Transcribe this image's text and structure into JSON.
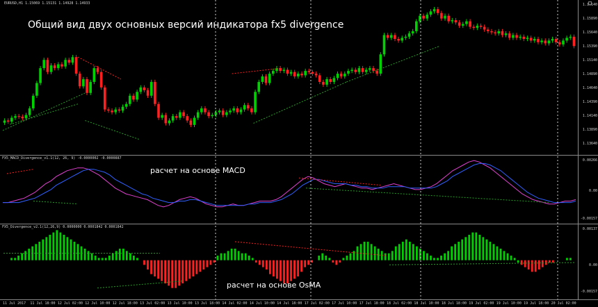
{
  "window": {
    "title": "EURUSD,H1",
    "ohlc": "1.15069 1.15131 1.14928 1.14933"
  },
  "headline": "Общий вид двух основных версий индикатора fx5 divergence",
  "macd_pane": {
    "label": "FX5_MACD_Divergence_v1.1(12, 26, 9) -0.0000002 -0.0000887",
    "caption": "расчет на основе  MACD"
  },
  "osma_pane": {
    "label": "FX5_Divergence_v2.1(12,26,9) 0.0000000 0.0001842 0.0001842",
    "caption": "расчет на основе OsMA"
  },
  "price_ticks": [
    "1.16140",
    "1.15890",
    "1.15640",
    "1.15390",
    "1.15140",
    "1.14890",
    "1.14640",
    "1.14390",
    "1.14140",
    "1.13890",
    "1.13640"
  ],
  "macd_ticks": [
    "0.00266",
    "0.00",
    "-0.00157"
  ],
  "osma_ticks": [
    "0.00137",
    "0.00",
    "-0.00157"
  ],
  "time_labels": [
    "11 Jul 2017",
    "11 Jul 18:00",
    "12 Jul 02:00",
    "12 Jul 10:00",
    "12 Jul 18:00",
    "13 Jul 02:00",
    "13 Jul 10:00",
    "13 Jul 18:00",
    "14 Jul 02:00",
    "14 Jul 10:00",
    "14 Jul 18:00",
    "17 Jul 02:00",
    "17 Jul 10:00",
    "17 Jul 18:00",
    "18 Jul 02:00",
    "18 Jul 10:00",
    "18 Jul 18:00",
    "19 Jul 02:00",
    "19 Jul 10:00",
    "19 Jul 18:00",
    "20 Jul 02:00"
  ],
  "colors": {
    "background": "#000000",
    "bull": "#00d200",
    "bear": "#ff2020",
    "main_line": "#e040d0",
    "signal_line": "#2f5fff",
    "grid": "#d0d0d0",
    "div_up": "#28a028",
    "div_dn": "#ff2020"
  },
  "chart_data": [
    {
      "type": "candlestick",
      "name": "EURUSD,H1",
      "ylim": [
        1.1359,
        1.1616
      ],
      "close": [
        1.141,
        1.1408,
        1.1415,
        1.1418,
        1.1417,
        1.1414,
        1.142,
        1.1432,
        1.1455,
        1.1478,
        1.1505,
        1.152,
        1.1498,
        1.151,
        1.1505,
        1.1512,
        1.1508,
        1.152,
        1.1515,
        1.1525,
        1.1495,
        1.1472,
        1.1485,
        1.146,
        1.148,
        1.1505,
        1.1498,
        1.147,
        1.143,
        1.1428,
        1.1425,
        1.143,
        1.1428,
        1.1435,
        1.144,
        1.1455,
        1.1448,
        1.1462,
        1.147,
        1.1465,
        1.1455,
        1.148,
        1.144,
        1.1415,
        1.142,
        1.1405,
        1.141,
        1.1418,
        1.1415,
        1.1425,
        1.1418,
        1.141,
        1.1402,
        1.1415,
        1.1425,
        1.1432,
        1.1425,
        1.1418,
        1.142,
        1.1425,
        1.1428,
        1.142,
        1.1425,
        1.1428,
        1.1432,
        1.1425,
        1.143,
        1.1438,
        1.1432,
        1.1425,
        1.1462,
        1.148,
        1.149,
        1.1478,
        1.1495,
        1.15,
        1.1505,
        1.15,
        1.1502,
        1.1495,
        1.1498,
        1.149,
        1.1495,
        1.1492,
        1.15,
        1.1498,
        1.1495,
        1.1492,
        1.148,
        1.1475,
        1.1485,
        1.148,
        1.1487,
        1.1495,
        1.149,
        1.1495,
        1.15,
        1.1502,
        1.1498,
        1.1505,
        1.1498,
        1.1502,
        1.1505,
        1.15,
        1.1495,
        1.153,
        1.1565,
        1.156,
        1.1565,
        1.1558,
        1.1555,
        1.156,
        1.1562,
        1.1568,
        1.1572,
        1.159,
        1.16,
        1.1595,
        1.1602,
        1.1608,
        1.1612,
        1.1605,
        1.1595,
        1.16,
        1.159,
        1.1592,
        1.1588,
        1.1582,
        1.1585,
        1.159,
        1.158,
        1.1578,
        1.1582,
        1.158,
        1.1575,
        1.1572,
        1.157,
        1.1568,
        1.1572,
        1.1565,
        1.1568,
        1.156,
        1.1565,
        1.156,
        1.1562,
        1.1558,
        1.156,
        1.1555,
        1.1558,
        1.1552,
        1.1555,
        1.155,
        1.1555,
        1.1558,
        1.1552,
        1.1548,
        1.1555,
        1.156,
        1.1562,
        1.1545
      ],
      "divergence_lines": [
        {
          "color": "div_dn",
          "x": [
            21,
            33
          ],
          "y": [
            1.1525,
            1.1485
          ]
        },
        {
          "color": "div_up",
          "x": [
            0,
            23
          ],
          "y": [
            1.1392,
            1.146
          ]
        },
        {
          "color": "div_up",
          "x": [
            23,
            38
          ],
          "y": [
            1.141,
            1.1376
          ]
        },
        {
          "color": "div_up",
          "x": [
            2,
            21
          ],
          "y": [
            1.1403,
            1.144
          ]
        },
        {
          "color": "div_dn",
          "x": [
            64,
            78
          ],
          "y": [
            1.1495,
            1.1505
          ]
        },
        {
          "color": "div_up",
          "x": [
            70,
            96
          ],
          "y": [
            1.1405,
            1.148
          ]
        },
        {
          "color": "div_up",
          "x": [
            96,
            122
          ],
          "y": [
            1.148,
            1.1545
          ]
        }
      ]
    },
    {
      "type": "line",
      "name": "FX5_MACD_Divergence_v1.1",
      "ylim": [
        -0.00157,
        0.00266
      ],
      "series": [
        {
          "color": "main_line",
          "values": [
            -0.0003,
            -0.0003,
            -0.0002,
            -0.0001,
            0.0,
            0.0002,
            0.0004,
            0.0007,
            0.001,
            0.0012,
            0.0015,
            0.0017,
            0.0019,
            0.002,
            0.0021,
            0.0021,
            0.002,
            0.0018,
            0.0016,
            0.0013,
            0.001,
            0.0007,
            0.0005,
            0.0003,
            0.0002,
            0.0001,
            0.0,
            -0.0001,
            -0.0003,
            -0.0005,
            -0.0006,
            -0.0005,
            -0.0003,
            -0.0001,
            0.0,
            0.0001,
            0.0,
            -0.0002,
            -0.0004,
            -0.0005,
            -0.0006,
            -0.0006,
            -0.0005,
            -0.0004,
            -0.0005,
            -0.0005,
            -0.0004,
            -0.0003,
            -0.0002,
            -0.0002,
            -0.0002,
            -0.0001,
            0.0001,
            0.0004,
            0.0007,
            0.001,
            0.0013,
            0.0015,
            0.0014,
            0.0012,
            0.001,
            0.0009,
            0.0008,
            0.0009,
            0.001,
            0.0009,
            0.0008,
            0.0007,
            0.0007,
            0.0006,
            0.0007,
            0.0008,
            0.0009,
            0.001,
            0.0009,
            0.0008,
            0.0007,
            0.0006,
            0.0006,
            0.0007,
            0.0008,
            0.001,
            0.0013,
            0.0016,
            0.0019,
            0.0021,
            0.0023,
            0.0025,
            0.0026,
            0.0025,
            0.0023,
            0.0021,
            0.0018,
            0.0015,
            0.0012,
            0.0009,
            0.0006,
            0.0003,
            0.0001,
            -0.0001,
            -0.0002,
            -0.0003,
            -0.0004,
            -0.0004,
            -0.0003,
            -0.0002,
            -0.0002,
            -0.0001
          ]
        },
        {
          "color": "signal_line",
          "values": [
            -0.0003,
            -0.0003,
            -0.0003,
            -0.0003,
            -0.0002,
            -0.0001,
            0.0,
            0.0002,
            0.0004,
            0.0006,
            0.0009,
            0.0011,
            0.0013,
            0.0015,
            0.0017,
            0.0019,
            0.002,
            0.002,
            0.0019,
            0.0018,
            0.0016,
            0.0013,
            0.0011,
            0.0009,
            0.0007,
            0.0005,
            0.0003,
            0.0002,
            0.0,
            -0.0001,
            -0.0002,
            -0.0003,
            -0.0003,
            -0.0002,
            -0.0002,
            -0.0001,
            -0.0001,
            -0.0002,
            -0.0003,
            -0.0004,
            -0.0005,
            -0.0005,
            -0.0005,
            -0.0005,
            -0.0005,
            -0.0005,
            -0.0004,
            -0.0004,
            -0.0003,
            -0.0003,
            -0.0003,
            -0.0002,
            -0.0001,
            0.0001,
            0.0003,
            0.0006,
            0.0009,
            0.0011,
            0.0013,
            0.0013,
            0.0012,
            0.0011,
            0.001,
            0.001,
            0.001,
            0.0009,
            0.0009,
            0.0008,
            0.0008,
            0.0007,
            0.0007,
            0.0007,
            0.0008,
            0.0008,
            0.0008,
            0.0008,
            0.0007,
            0.0007,
            0.0007,
            0.0007,
            0.0007,
            0.0008,
            0.001,
            0.0012,
            0.0015,
            0.0017,
            0.0019,
            0.0021,
            0.0023,
            0.0024,
            0.0024,
            0.0023,
            0.0021,
            0.0019,
            0.0016,
            0.0013,
            0.001,
            0.0007,
            0.0004,
            0.0002,
            0.0,
            -0.0001,
            -0.0002,
            -0.0003,
            -0.0003,
            -0.0003,
            -0.0003,
            -0.0002
          ]
        }
      ]
    },
    {
      "type": "bar",
      "name": "FX5_Divergence_v2.1",
      "ylim": [
        -0.00157,
        0.00137
      ],
      "values": [
        0.0,
        0.0,
        0.0001,
        0.0001,
        0.0002,
        0.0003,
        0.0004,
        0.0005,
        0.0006,
        0.0007,
        0.0008,
        0.0009,
        0.001,
        0.0011,
        0.0012,
        0.0013,
        0.0012,
        0.0011,
        0.001,
        0.0009,
        0.0008,
        0.0007,
        0.0006,
        0.0005,
        0.0004,
        0.0003,
        0.0002,
        0.0001,
        0.0001,
        0.0001,
        0.0002,
        0.0003,
        0.0004,
        0.0005,
        0.0005,
        0.0004,
        0.0003,
        0.0002,
        0.0001,
        0.0,
        -0.0002,
        -0.0004,
        -0.0006,
        -0.0007,
        -0.0008,
        -0.0009,
        -0.001,
        -0.0011,
        -0.0012,
        -0.0012,
        -0.0011,
        -0.001,
        -0.0009,
        -0.0008,
        -0.0007,
        -0.0006,
        -0.0005,
        -0.0004,
        -0.0003,
        -0.0002,
        -0.0001,
        0.0002,
        0.0003,
        0.0003,
        0.0004,
        0.0005,
        0.0005,
        0.0004,
        0.0003,
        0.0003,
        0.0002,
        0.0001,
        -0.0001,
        -0.0002,
        -0.0003,
        -0.0004,
        -0.0006,
        -0.0007,
        -0.0008,
        -0.0009,
        -0.001,
        -0.001,
        -0.0009,
        -0.0008,
        -0.0007,
        -0.0005,
        -0.0003,
        -0.0002,
        -0.0001,
        0.0,
        0.0002,
        0.0003,
        0.0002,
        0.0001,
        -0.0001,
        -0.0002,
        -0.0001,
        0.0001,
        0.0002,
        0.0003,
        0.0004,
        0.0006,
        0.0007,
        0.0008,
        0.0008,
        0.0007,
        0.0006,
        0.0005,
        0.0004,
        0.0003,
        0.0003,
        0.0004,
        0.0006,
        0.0007,
        0.0008,
        0.0009,
        0.0008,
        0.0007,
        0.0006,
        0.0005,
        0.0004,
        0.0003,
        0.0002,
        0.0001,
        0.0001,
        0.0002,
        0.0003,
        0.0004,
        0.0006,
        0.0007,
        0.0008,
        0.0009,
        0.001,
        0.0011,
        0.0012,
        0.0012,
        0.0011,
        0.001,
        0.0009,
        0.0008,
        0.0007,
        0.0006,
        0.0005,
        0.0004,
        0.0003,
        0.0002,
        0.0001,
        -0.0001,
        -0.0002,
        -0.0003,
        -0.0004,
        -0.0005,
        -0.0005,
        -0.0004,
        -0.0003,
        -0.0002,
        -0.0001,
        -0.0001,
        0.0,
        0.0,
        0.0,
        0.0001,
        0.0001,
        0.0
      ],
      "bar_colors": [
        "bull",
        "bull",
        "bull",
        "bull",
        "bull",
        "bull",
        "bull",
        "bull",
        "bull",
        "bull",
        "bull",
        "bull",
        "bull",
        "bull",
        "bull",
        "bull",
        "bull",
        "bull",
        "bull",
        "bull",
        "bull",
        "bull",
        "bull",
        "bull",
        "bull",
        "bull",
        "bull",
        "bull",
        "bull",
        "bull",
        "bull",
        "bull",
        "bull",
        "bull",
        "bull",
        "bull",
        "bull",
        "bull",
        "bull",
        "bull",
        "bear",
        "bear",
        "bear",
        "bear",
        "bear",
        "bear",
        "bear",
        "bear",
        "bear",
        "bear",
        "bear",
        "bear",
        "bear",
        "bear",
        "bear",
        "bear",
        "bear",
        "bear",
        "bear",
        "bear",
        "bear",
        "bull",
        "bull",
        "bull",
        "bull",
        "bull",
        "bull",
        "bull",
        "bull",
        "bull",
        "bull",
        "bull",
        "bear",
        "bear",
        "bear",
        "bear",
        "bear",
        "bear",
        "bear",
        "bear",
        "bear",
        "bear",
        "bear",
        "bear",
        "bear",
        "bear",
        "bear",
        "bear",
        "bear",
        "bull",
        "bull",
        "bull",
        "bull",
        "bull",
        "bear",
        "bear",
        "bear",
        "bull",
        "bull",
        "bull",
        "bull",
        "bull",
        "bull",
        "bull",
        "bull",
        "bull",
        "bull",
        "bull",
        "bull",
        "bull",
        "bull",
        "bull",
        "bull",
        "bull",
        "bull",
        "bull",
        "bull",
        "bull",
        "bull",
        "bull",
        "bull",
        "bull",
        "bull",
        "bull",
        "bull",
        "bull",
        "bull",
        "bull",
        "bull",
        "bull",
        "bull",
        "bull",
        "bull",
        "bull",
        "bull",
        "bull",
        "bull",
        "bull",
        "bull",
        "bull",
        "bull",
        "bull",
        "bull",
        "bull",
        "bull",
        "bull",
        "bull",
        "bull",
        "bear",
        "bear",
        "bear",
        "bear",
        "bear",
        "bear",
        "bear",
        "bear",
        "bear",
        "bear",
        "bear",
        "bear",
        "bull",
        "bull",
        "bull",
        "bull",
        "bull"
      ]
    }
  ]
}
